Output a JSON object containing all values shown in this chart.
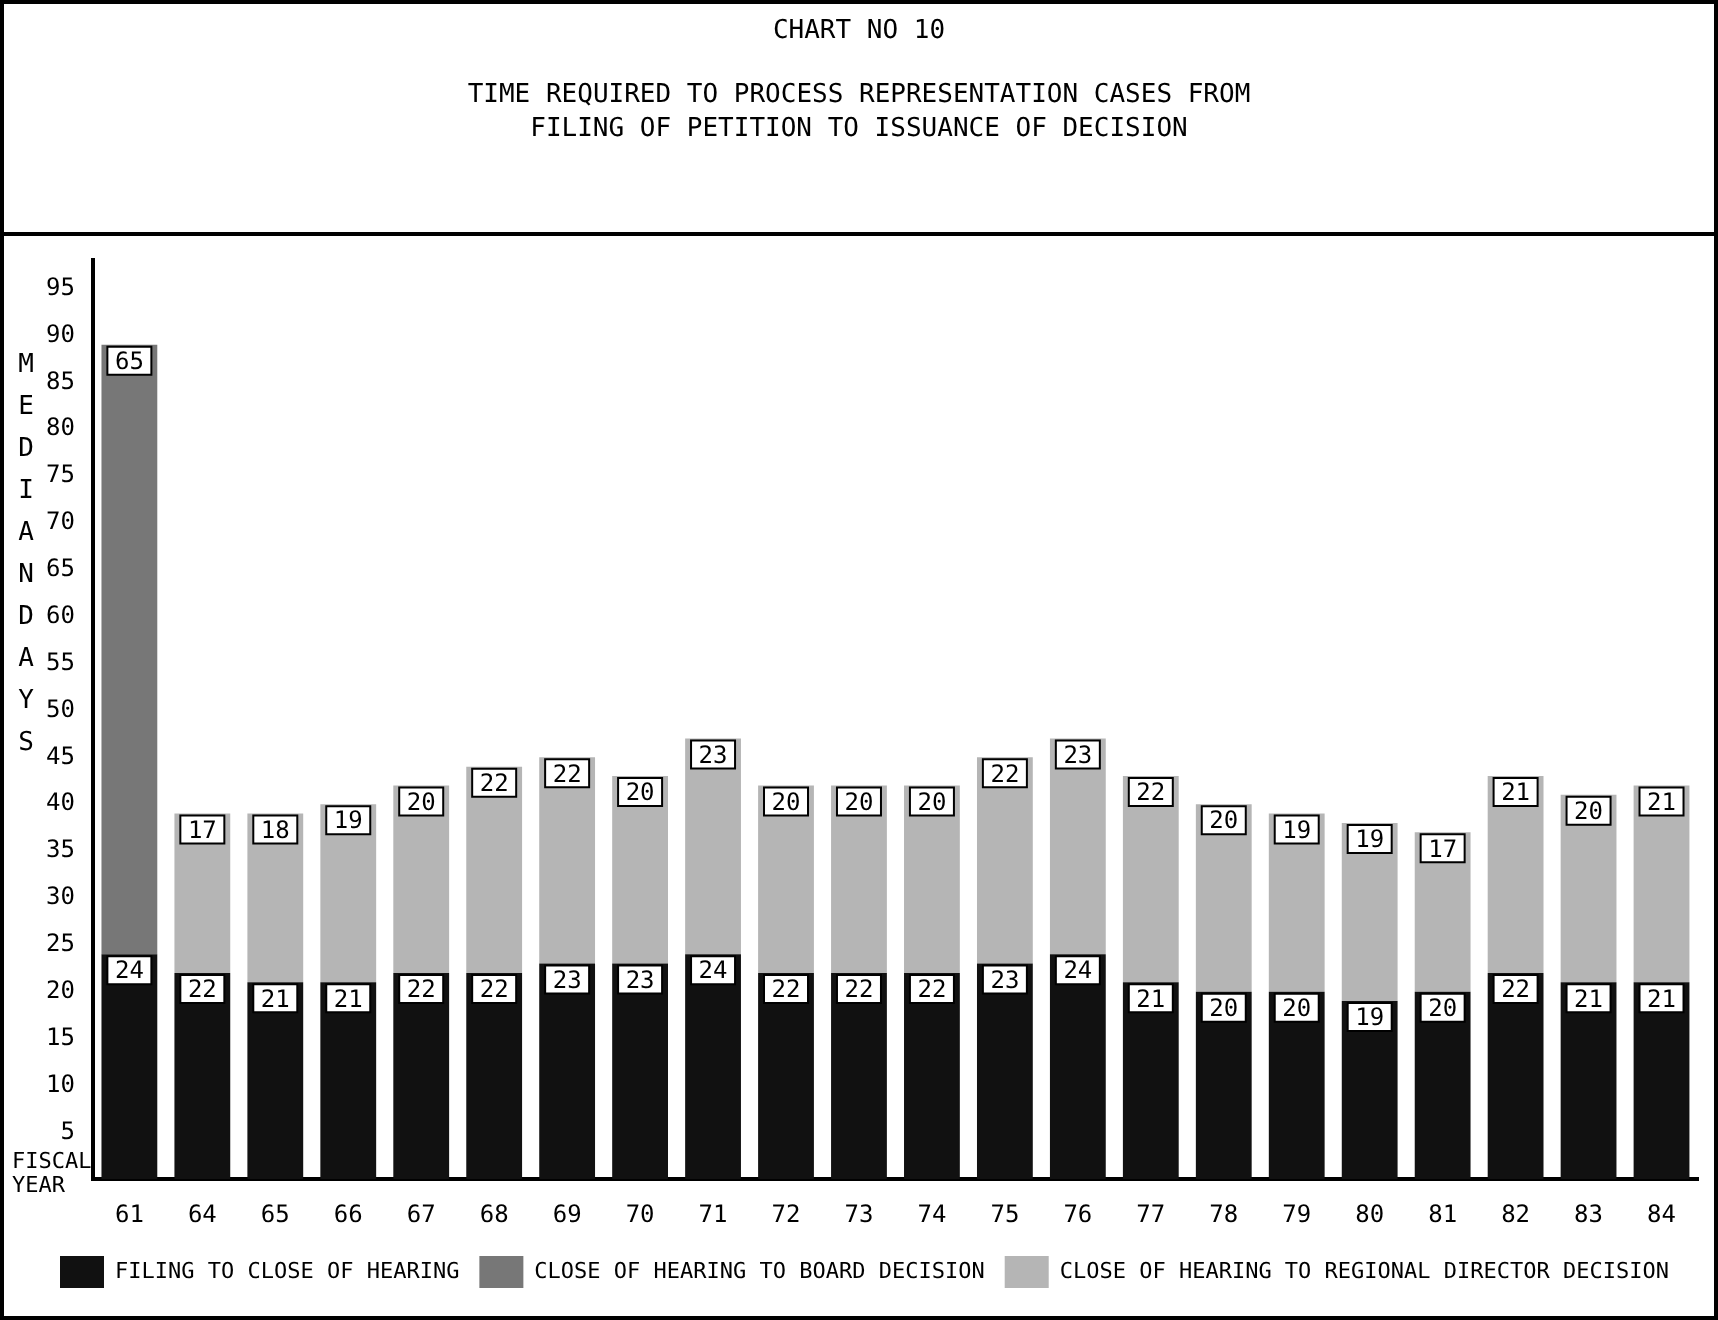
{
  "chart_data": {
    "type": "bar",
    "title": "CHART NO  10",
    "subtitle": "TIME REQUIRED TO PROCESS REPRESENTATION CASES FROM FILING OF PETITION TO ISSUANCE OF DECISION",
    "xlabel": "FISCAL YEAR",
    "ylabel": "MEDIAN DAYS",
    "categories": [
      "61",
      "64",
      "65",
      "66",
      "67",
      "68",
      "69",
      "70",
      "71",
      "72",
      "73",
      "74",
      "75",
      "76",
      "77",
      "78",
      "79",
      "80",
      "81",
      "82",
      "83",
      "84"
    ],
    "stacked": true,
    "series": [
      {
        "name": "FILING TO CLOSE OF HEARING",
        "color": "#111111",
        "values": [
          24,
          22,
          21,
          21,
          22,
          22,
          23,
          23,
          24,
          22,
          22,
          22,
          23,
          24,
          21,
          20,
          20,
          19,
          20,
          22,
          21,
          21
        ]
      },
      {
        "name": "CLOSE OF HEARING TO BOARD DECISION",
        "color": "#777777",
        "values": [
          65,
          null,
          null,
          null,
          null,
          null,
          null,
          null,
          null,
          null,
          null,
          null,
          null,
          null,
          null,
          null,
          null,
          null,
          null,
          null,
          null,
          null
        ]
      },
      {
        "name": "CLOSE OF HEARING TO REGIONAL DIRECTOR DECISION",
        "color": "#b5b5b5",
        "values": [
          null,
          17,
          18,
          19,
          20,
          22,
          22,
          20,
          23,
          20,
          20,
          20,
          22,
          23,
          22,
          20,
          19,
          19,
          17,
          21,
          20,
          21
        ]
      }
    ],
    "ylim": [
      0,
      98
    ],
    "yticks": [
      5,
      10,
      15,
      20,
      25,
      30,
      35,
      40,
      45,
      50,
      55,
      60,
      65,
      70,
      75,
      80,
      85,
      90,
      95
    ],
    "grid": false,
    "legend": "bottom",
    "data_labels": true
  }
}
